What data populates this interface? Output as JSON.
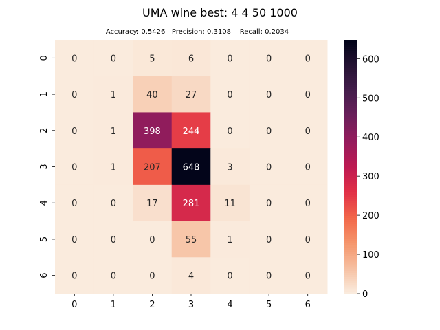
{
  "chart_data": {
    "type": "heatmap",
    "title": "UMA wine best: 4 4 50 1000",
    "subtitle": "Accuracy: 0.5426   Precision: 0.3108    Recall: 0.2034",
    "x_categories": [
      "0",
      "1",
      "2",
      "3",
      "4",
      "5",
      "6"
    ],
    "y_categories": [
      "0",
      "1",
      "2",
      "3",
      "4",
      "5",
      "6"
    ],
    "values": [
      [
        0,
        0,
        5,
        6,
        0,
        0,
        0
      ],
      [
        0,
        1,
        40,
        27,
        0,
        0,
        0
      ],
      [
        0,
        1,
        398,
        244,
        0,
        0,
        0
      ],
      [
        0,
        1,
        207,
        648,
        3,
        0,
        0
      ],
      [
        0,
        0,
        17,
        281,
        11,
        0,
        0
      ],
      [
        0,
        0,
        0,
        55,
        1,
        0,
        0
      ],
      [
        0,
        0,
        0,
        4,
        0,
        0,
        0
      ]
    ],
    "colorbar_range": [
      0,
      648
    ],
    "colorbar_ticks": [
      0,
      100,
      200,
      300,
      400,
      500,
      600
    ],
    "colormap": "rocket_r",
    "annotations": true
  }
}
